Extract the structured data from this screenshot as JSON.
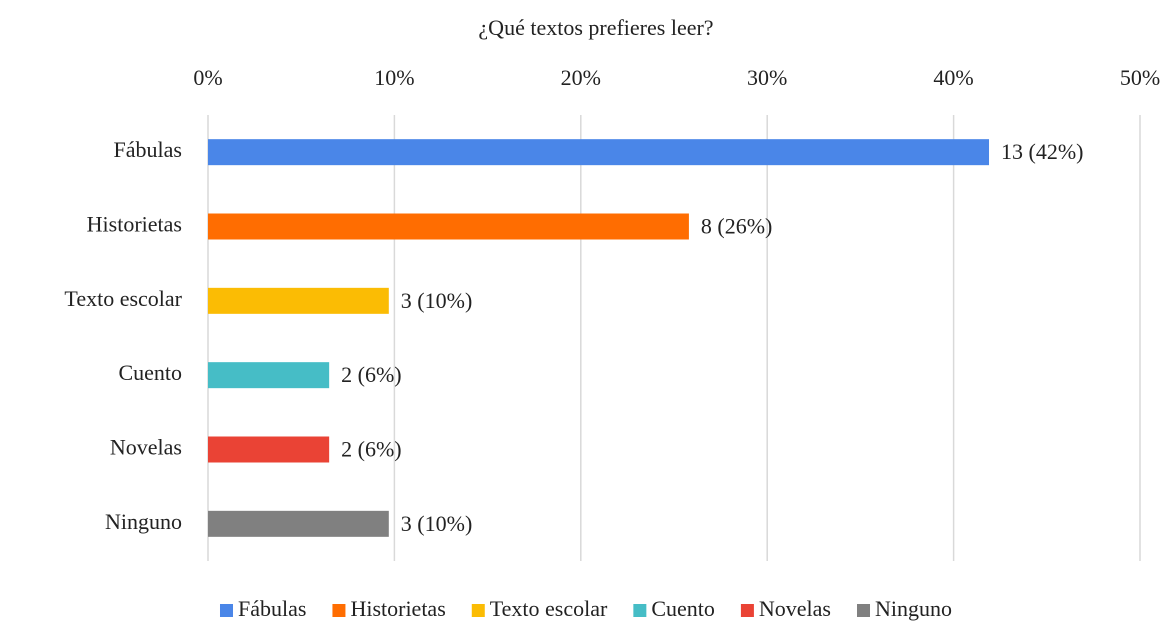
{
  "chart_data": {
    "type": "hbar",
    "title": "¿Qué textos prefieres leer?",
    "categories": [
      "Fábulas",
      "Historietas",
      "Texto escolar",
      "Cuento",
      "Novelas",
      "Ninguno"
    ],
    "values": [
      41.9,
      25.8,
      9.7,
      6.5,
      6.5,
      9.7
    ],
    "value_labels": [
      "13 (42%)",
      "8 (26%)",
      "3 (10%)",
      "2 (6%)",
      "2 (6%)",
      "3 (10%)"
    ],
    "colors": [
      "#4a86e8",
      "#ff6d01",
      "#fbbc04",
      "#46bdc6",
      "#ea4335",
      "#808080"
    ],
    "xlim": [
      0,
      50
    ],
    "xticks": [
      {
        "value": 0,
        "label": "0%"
      },
      {
        "value": 10,
        "label": "10%"
      },
      {
        "value": 20,
        "label": "20%"
      },
      {
        "value": 30,
        "label": "30%"
      },
      {
        "value": 40,
        "label": "40%"
      },
      {
        "value": 50,
        "label": "50%"
      }
    ],
    "grid": true,
    "legend": "bottom"
  }
}
